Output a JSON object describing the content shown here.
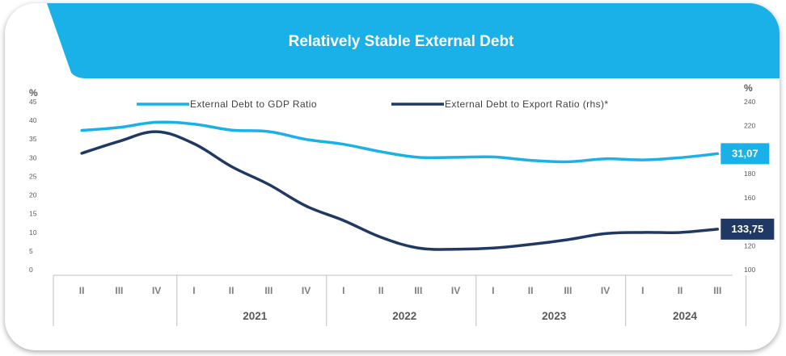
{
  "title": "Relatively Stable External Debt",
  "chart_data": {
    "type": "line",
    "title": "Relatively Stable External Debt",
    "y_left_unit": "%",
    "y_right_unit": "%",
    "y_left_ticks": [
      "0",
      "5",
      "10",
      "15",
      "20",
      "25",
      "30",
      "35",
      "40",
      "45"
    ],
    "y_left_range": [
      0,
      45
    ],
    "y_right_ticks": [
      "100",
      "120",
      "140",
      "160",
      "180",
      "200",
      "220",
      "240"
    ],
    "y_right_range": [
      100,
      240
    ],
    "quarters": [
      "II",
      "III",
      "IV",
      "I",
      "II",
      "III",
      "IV",
      "I",
      "II",
      "III",
      "IV",
      "I",
      "II",
      "III",
      "IV",
      "I",
      "II",
      "III"
    ],
    "years": [
      {
        "label": "2021",
        "first_quarter_index": 3,
        "quarter_count": 4
      },
      {
        "label": "2022",
        "first_quarter_index": 7,
        "quarter_count": 4
      },
      {
        "label": "2023",
        "first_quarter_index": 11,
        "quarter_count": 4
      },
      {
        "label": "2024",
        "first_quarter_index": 15,
        "quarter_count": 3
      }
    ],
    "legend_position": "top",
    "series": [
      {
        "name": "External Debt to GDP Ratio",
        "axis": "left",
        "color": "#1ab0e8",
        "values": [
          37.3,
          38.1,
          39.5,
          39.0,
          37.4,
          37.0,
          34.9,
          33.6,
          31.6,
          30.1,
          30.1,
          30.2,
          29.3,
          28.9,
          29.7,
          29.4,
          30.0,
          31.07
        ],
        "end_label": "31,07"
      },
      {
        "name": "External Debt to Export Ratio (rhs)*",
        "axis": "right",
        "color": "#1f3864",
        "values": [
          197,
          207,
          215,
          205,
          186,
          171,
          153,
          141,
          127,
          118,
          117,
          118,
          121,
          125,
          130,
          131,
          131,
          133.75
        ],
        "end_label": "133,75"
      }
    ]
  }
}
